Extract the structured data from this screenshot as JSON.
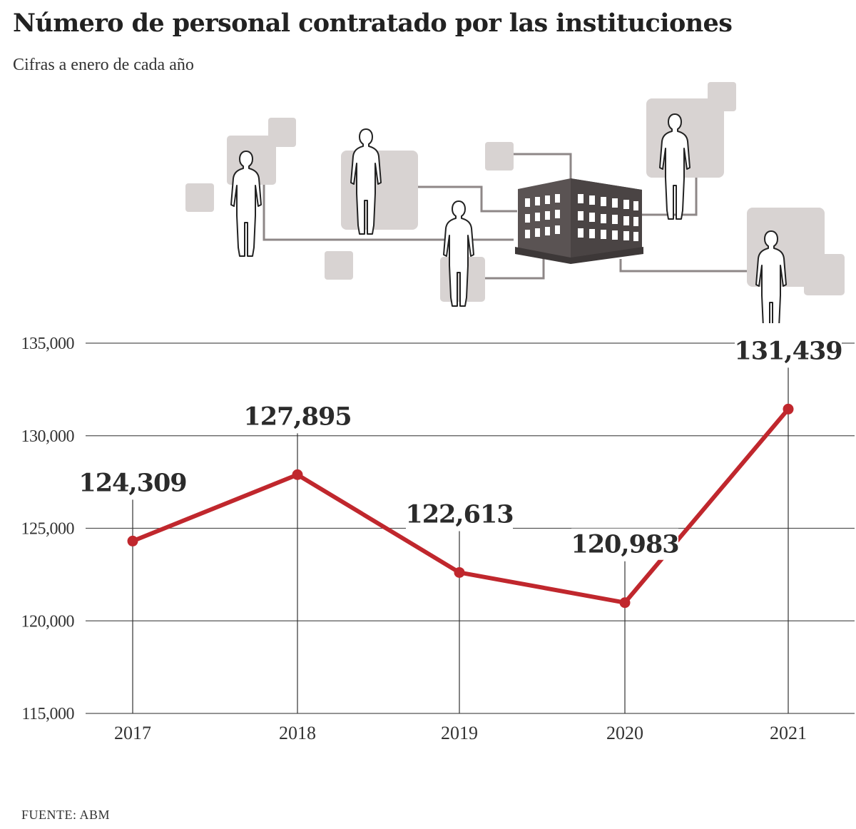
{
  "header": {
    "title": "Número de personal contratado por las instituciones",
    "subtitle": "Cifras a enero de cada año"
  },
  "footer": {
    "source": "FUENTE: ABM"
  },
  "colors": {
    "line": "#c0272d",
    "grid": "#555555",
    "tile": "#d8d3d2",
    "building": "#5a5353"
  },
  "illustration": {
    "icons": [
      "building-icon",
      "person-icon"
    ]
  },
  "chart_data": {
    "type": "line",
    "title": "Número de personal contratado por las instituciones",
    "subtitle": "Cifras a enero de cada año",
    "x": [
      "2017",
      "2018",
      "2019",
      "2020",
      "2021"
    ],
    "series": [
      {
        "values": [
          124309,
          127895,
          122613,
          120983,
          131439
        ],
        "labels": [
          "124,309",
          "127,895",
          "122,613",
          "120,983",
          "131,439"
        ]
      }
    ],
    "yticks": [
      115000,
      120000,
      125000,
      130000,
      135000
    ],
    "ytick_labels": [
      "115,000",
      "120,000",
      "125,000",
      "130,000",
      "135,000"
    ],
    "ylim": [
      115000,
      135000
    ],
    "grid": true,
    "legend": "none"
  }
}
